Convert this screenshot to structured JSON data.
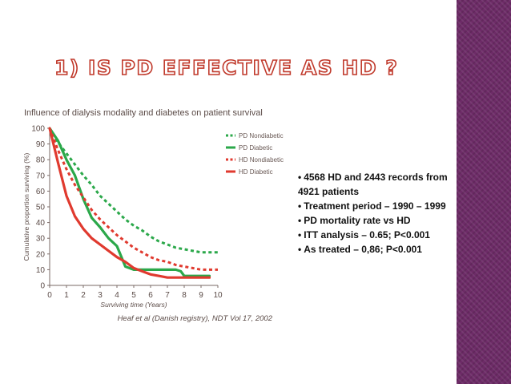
{
  "slide": {
    "title": "1) IS PD EFFECTIVE AS HD ?",
    "bullets": [
      "4568 HD and 2443 records from 4921 patients",
      "Treatment period – 1990 – 1999",
      "PD mortality rate vs HD",
      "ITT analysis – 0.65; P<0.001",
      "As treated – 0,86; P<0.001"
    ],
    "bullet_symbol": "•",
    "band_color": "#6d2b67"
  },
  "chart_data": {
    "type": "line",
    "title": "Influence of dialysis modality and diabetes on patient survival",
    "xlabel": "Surviving time (Years)",
    "ylabel": "Cumulative proportion surviving (%)",
    "xlim": [
      0,
      10
    ],
    "ylim": [
      0,
      100
    ],
    "xticks": [
      0,
      1,
      2,
      3,
      4,
      5,
      6,
      7,
      8,
      9,
      10
    ],
    "yticks": [
      0,
      10,
      20,
      30,
      40,
      50,
      60,
      70,
      80,
      90,
      100
    ],
    "grid": false,
    "legend_position": "top-right",
    "source": "Heaf et al (Danish registry), NDT Vol 17, 2002",
    "series": [
      {
        "name": "PD Nondiabetic",
        "color": "#2ba84a",
        "dashed": true,
        "x": [
          0,
          0.5,
          1,
          1.5,
          2,
          2.5,
          3,
          3.5,
          4,
          4.5,
          5,
          5.5,
          6,
          6.5,
          7,
          7.5,
          8,
          8.5,
          9,
          9.5,
          10
        ],
        "y": [
          100,
          91,
          84,
          77,
          70,
          64,
          57,
          52,
          47,
          42,
          38,
          35,
          31,
          28,
          26,
          24,
          23,
          22,
          21,
          21,
          21
        ]
      },
      {
        "name": "PD Diabetic",
        "color": "#2ba84a",
        "dashed": false,
        "x": [
          0,
          0.5,
          1,
          1.5,
          2,
          2.5,
          3,
          3.5,
          4,
          4.5,
          5,
          5.5,
          6,
          6.5,
          7,
          7.5,
          7.8,
          8,
          8.5,
          9,
          9.5
        ],
        "y": [
          100,
          92,
          80,
          70,
          55,
          43,
          37,
          30,
          25,
          12,
          10,
          10,
          10,
          10,
          10,
          10,
          9,
          6,
          6,
          6,
          6
        ]
      },
      {
        "name": "HD Nondiabetic",
        "color": "#e03a2f",
        "dashed": true,
        "x": [
          0,
          0.5,
          1,
          1.5,
          2,
          2.5,
          3,
          3.5,
          4,
          4.5,
          5,
          5.5,
          6,
          6.5,
          7,
          7.5,
          8,
          8.5,
          9,
          9.5,
          10
        ],
        "y": [
          100,
          86,
          74,
          64,
          56,
          48,
          42,
          37,
          32,
          28,
          24,
          21,
          18,
          16,
          15,
          13,
          12,
          11,
          10,
          10,
          10
        ]
      },
      {
        "name": "HD Diabetic",
        "color": "#e03a2f",
        "dashed": false,
        "x": [
          0,
          0.5,
          1,
          1.5,
          2,
          2.5,
          3,
          3.5,
          4,
          4.5,
          5,
          5.5,
          6,
          6.5,
          7,
          7.5,
          8,
          8.5,
          9,
          9.5
        ],
        "y": [
          100,
          78,
          57,
          44,
          36,
          30,
          26,
          22,
          18,
          15,
          11,
          9,
          7,
          6,
          5,
          5,
          5,
          5,
          5,
          5
        ]
      }
    ]
  }
}
